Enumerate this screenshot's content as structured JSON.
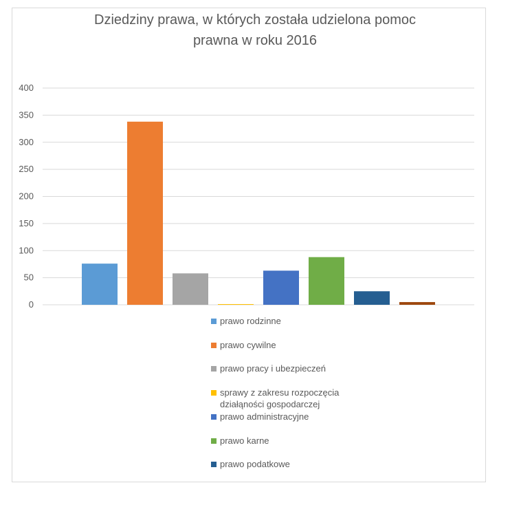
{
  "chart_data": {
    "type": "bar",
    "title_lines": [
      "Dziedziny prawa, w których została udzielona pomoc",
      "prawna w roku 2016"
    ],
    "xlabel": "",
    "ylabel": "",
    "ylim": [
      0,
      400
    ],
    "yticks": [
      0,
      50,
      100,
      150,
      200,
      250,
      300,
      350,
      400
    ],
    "grid": true,
    "legend_position": "bottom",
    "categories": [
      "prawo rodzinne",
      "prawo cywilne",
      "prawo pracy i ubezpieczeń",
      "sprawy z zakresu rozpoczęcia działąności gospodarczej",
      "prawo administracyjne",
      "prawo karne",
      "prawo podatkowe",
      ""
    ],
    "values": [
      76,
      338,
      58,
      1,
      63,
      88,
      25,
      5
    ],
    "colors": [
      "#5b9bd5",
      "#ed7d31",
      "#a5a5a5",
      "#ffc000",
      "#4472c4",
      "#70ad47",
      "#255e91",
      "#9e480e"
    ],
    "legend": [
      {
        "label_lines": [
          "prawo rodzinne"
        ],
        "color": "#5b9bd5"
      },
      {
        "label_lines": [
          "prawo cywilne"
        ],
        "color": "#ed7d31"
      },
      {
        "label_lines": [
          "prawo pracy i ubezpieczeń"
        ],
        "color": "#a5a5a5"
      },
      {
        "label_lines": [
          "sprawy z zakresu rozpoczęcia",
          "działąności gospodarczej"
        ],
        "color": "#ffc000"
      },
      {
        "label_lines": [
          "prawo administracyjne"
        ],
        "color": "#4472c4"
      },
      {
        "label_lines": [
          "prawo karne"
        ],
        "color": "#70ad47"
      },
      {
        "label_lines": [
          "prawo podatkowe"
        ],
        "color": "#255e91"
      }
    ]
  }
}
